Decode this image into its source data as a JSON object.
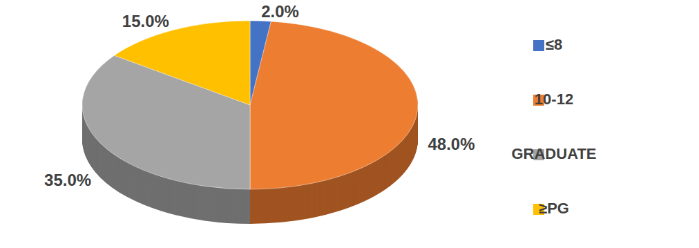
{
  "chart_data": {
    "type": "pie",
    "categories": [
      "≤8",
      "10-12",
      "GRADUATE",
      "≥PG"
    ],
    "values": [
      2,
      48,
      35,
      15
    ],
    "value_labels": [
      "2.0%",
      "48.0%",
      "35.0%",
      "15.0%"
    ],
    "colors": [
      "#4472c4",
      "#ed7d31",
      "#a5a5a5",
      "#ffc000"
    ],
    "data_labels": true,
    "legend": "right"
  }
}
